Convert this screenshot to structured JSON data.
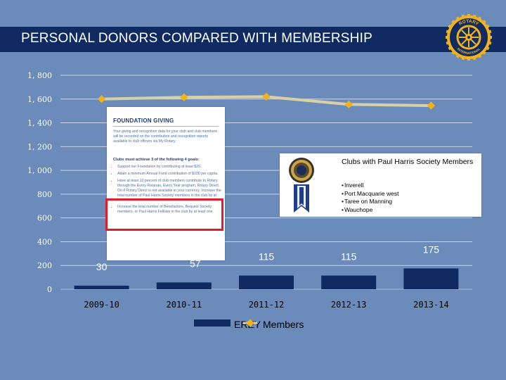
{
  "slide": {
    "title": "PERSONAL DONORS COMPARED WITH MEMBERSHIP",
    "logo": {
      "outer_text": "ROTARY",
      "inner_text": "INTERNATIONAL",
      "color": "#f2b21b"
    }
  },
  "colors": {
    "background": "#6b8cba",
    "title_bar": "#102a62",
    "erey_bars": "#102a62",
    "members_line": "#d9d0a8",
    "members_markers": "#f2b21b",
    "highlight_box": "#e21d2a"
  },
  "chart_data": {
    "type": "bar",
    "categories": [
      "2009-10",
      "2010-11",
      "2011-12",
      "2012-13",
      "2013-14"
    ],
    "series": [
      {
        "name": "EREY",
        "type": "bar",
        "values": [
          30,
          57,
          115,
          115,
          175
        ]
      },
      {
        "name": "Members",
        "type": "line",
        "values": [
          1600,
          1615,
          1620,
          1555,
          1545
        ]
      }
    ],
    "data_labels": [
      "30",
      "57",
      "115",
      "115",
      "175"
    ],
    "ylim": [
      0,
      1800
    ],
    "yticks": [
      0,
      200,
      400,
      600,
      800,
      1000,
      1200,
      1400,
      1600,
      1800
    ],
    "ytick_labels": [
      "0",
      "200",
      "400",
      "600",
      "800",
      "1, 000",
      "1, 200",
      "1, 400",
      "1, 600",
      "1, 800"
    ],
    "legend": [
      "EREY",
      "Members"
    ],
    "legend_position": "bottom",
    "title": "PERSONAL DONORS COMPARED WITH MEMBERSHIP"
  },
  "foundation_doc": {
    "heading": "FOUNDATION GIVING",
    "intro": "Your giving and recognition data for your club and club members will be recorded on the contribution and recognition reports available to club officers via My Rotary.",
    "goals_heading": "Clubs must achieve 3 of the following 4 goals:",
    "goals": [
      "Support our Foundation by contributing at least $20.",
      "Attain a minimum Annual Fund contribution of $100 per capita.",
      "Have at least 10 percent of club members contribute to Rotary through the Every Rotarian, Every Year program, Rotary Direct. On if Rotary Direct is not available in your currency. Increase the total number of Paul Harris Society members in the club by at least one.",
      "Increase the total number of Benefactors, Bequest Society members, or Paul Harris Fellows in the club by at least one."
    ]
  },
  "phs_callout": {
    "title": "Clubs with Paul Harris Society Members",
    "clubs": [
      "Inverell",
      "Port Macquarie west",
      "Taree on Manning",
      "Wauchope"
    ]
  }
}
